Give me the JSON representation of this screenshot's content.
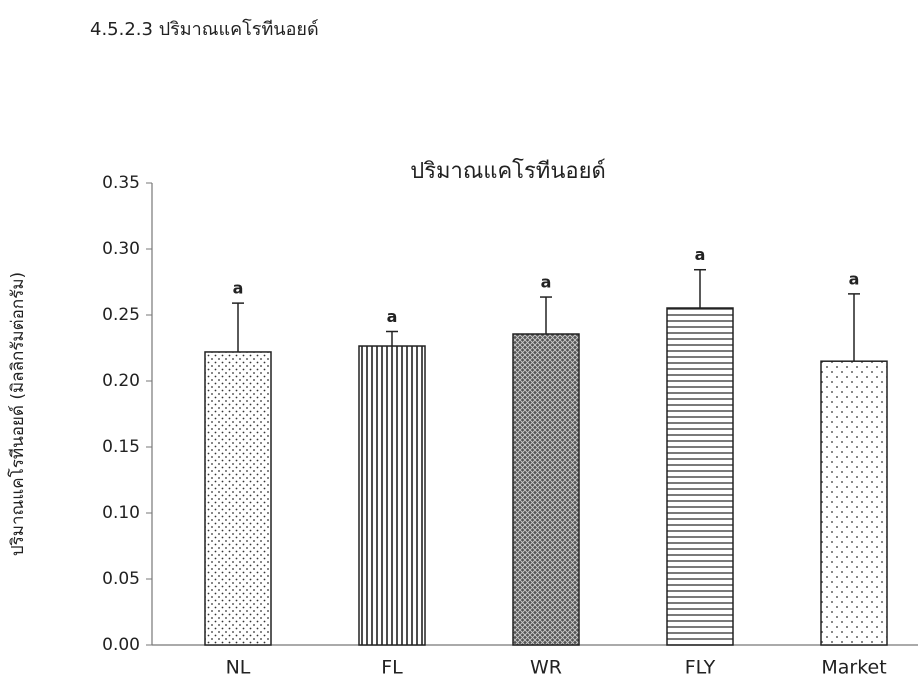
{
  "heading": "4.5.2.3 ปริมาณแคโรทีนอยด์",
  "chart_data": {
    "type": "bar",
    "title": "ปริมาณแคโรทีนอยด์",
    "y_label": "ปริมาณแคโรทีนอยด์ (มิลลิกรัมต่อกรัม)",
    "categories": [
      "NL",
      "FL",
      "WR",
      "FLY",
      "Market"
    ],
    "values": [
      0.222,
      0.2265,
      0.2356,
      0.2553,
      0.215
    ],
    "errors": [
      0.037,
      0.011,
      0.028,
      0.029,
      0.051
    ],
    "labels": [
      "a",
      "a",
      "a",
      "a",
      "a"
    ],
    "patterns": [
      "dots",
      "vertical",
      "crosshatch",
      "horizontal",
      "sparse-dots"
    ],
    "color": "#222222",
    "ylim": [
      0,
      0.35
    ],
    "yticks": [
      {
        "value": 0,
        "label": "0.00"
      },
      0.05,
      {
        "value": 0.1,
        "label": "0.10"
      },
      0.15,
      {
        "value": 0.2,
        "label": "0.20"
      },
      0.25,
      {
        "value": 0.3,
        "label": "0.30"
      },
      0.35
    ],
    "grid": false
  }
}
